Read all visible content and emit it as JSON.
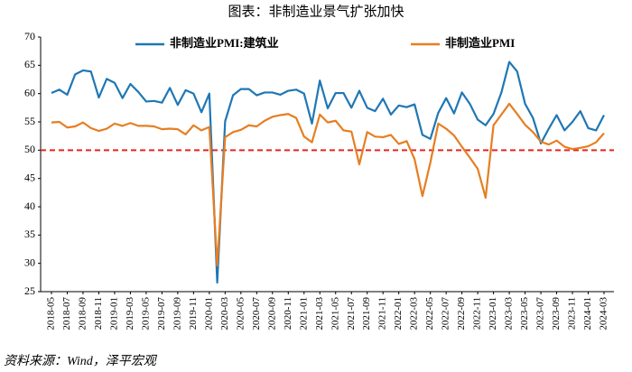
{
  "chart_data": {
    "type": "line",
    "title": "图表：非制造业景气扩张加快",
    "source": "资料来源：Wind，泽平宏观",
    "categories": [
      "2018-05",
      null,
      "2018-07",
      null,
      "2018-09",
      null,
      "2018-11",
      null,
      "2019-01",
      null,
      "2019-03",
      null,
      "2019-05",
      null,
      "2019-07",
      null,
      "2019-09",
      null,
      "2019-11",
      null,
      "2020-01",
      null,
      "2020-03",
      null,
      "2020-05",
      null,
      "2020-07",
      null,
      "2020-09",
      null,
      "2020-11",
      null,
      "2021-01",
      null,
      "2021-03",
      null,
      "2021-05",
      null,
      "2021-07",
      null,
      "2021-09",
      null,
      "2021-11",
      null,
      "2022-01",
      null,
      "2022-03",
      null,
      "2022-05",
      null,
      "2022-07",
      null,
      "2022-09",
      null,
      "2022-11",
      null,
      "2023-01",
      null,
      "2023-03",
      null,
      "2023-05",
      null,
      "2023-07",
      null,
      "2023-09",
      null,
      "2023-11",
      null,
      "2024-01",
      null,
      "2024-03"
    ],
    "series": [
      {
        "name": "非制造业PMI:建筑业",
        "color": "#1f77b4",
        "values": [
          60.1,
          60.7,
          59.8,
          63.4,
          64.1,
          63.9,
          59.3,
          62.6,
          61.9,
          59.2,
          61.7,
          60.3,
          58.6,
          58.7,
          58.4,
          61.0,
          58.0,
          60.6,
          60.0,
          56.7,
          60.0,
          26.6,
          55.1,
          59.7,
          60.8,
          60.8,
          59.7,
          60.2,
          60.2,
          59.8,
          60.5,
          60.7,
          60.0,
          54.7,
          62.3,
          57.4,
          60.1,
          60.1,
          57.5,
          60.5,
          57.5,
          56.9,
          59.1,
          56.3,
          57.9,
          57.6,
          58.1,
          52.7,
          52.0,
          56.6,
          59.2,
          56.5,
          60.2,
          58.2,
          55.4,
          54.4,
          56.4,
          60.2,
          65.6,
          63.9,
          58.2,
          55.7,
          51.2,
          53.8,
          56.2,
          53.5,
          55.0,
          56.9,
          53.9,
          53.5,
          56.2
        ]
      },
      {
        "name": "非制造业PMI",
        "color": "#e67e22",
        "values": [
          54.9,
          55.0,
          54.0,
          54.2,
          54.9,
          53.9,
          53.4,
          53.8,
          54.7,
          54.3,
          54.8,
          54.3,
          54.3,
          54.2,
          53.7,
          53.8,
          53.7,
          52.8,
          54.4,
          53.5,
          54.1,
          29.6,
          52.3,
          53.2,
          53.6,
          54.4,
          54.2,
          55.2,
          55.9,
          56.2,
          56.4,
          55.7,
          52.4,
          51.4,
          56.3,
          54.9,
          55.2,
          53.5,
          53.3,
          47.5,
          53.2,
          52.4,
          52.3,
          52.7,
          51.1,
          51.6,
          48.4,
          41.9,
          47.8,
          54.7,
          53.8,
          52.6,
          50.6,
          48.7,
          46.7,
          41.6,
          54.4,
          56.3,
          58.2,
          56.4,
          54.5,
          53.2,
          51.5,
          51.0,
          51.7,
          50.6,
          50.2,
          50.4,
          50.7,
          51.4,
          53.0
        ]
      }
    ],
    "ylim": [
      25,
      70
    ],
    "yticks": [
      25,
      30,
      35,
      40,
      45,
      50,
      55,
      60,
      65,
      70
    ],
    "reference_line": {
      "value": 50,
      "color": "#e8251f"
    },
    "grid": false
  }
}
